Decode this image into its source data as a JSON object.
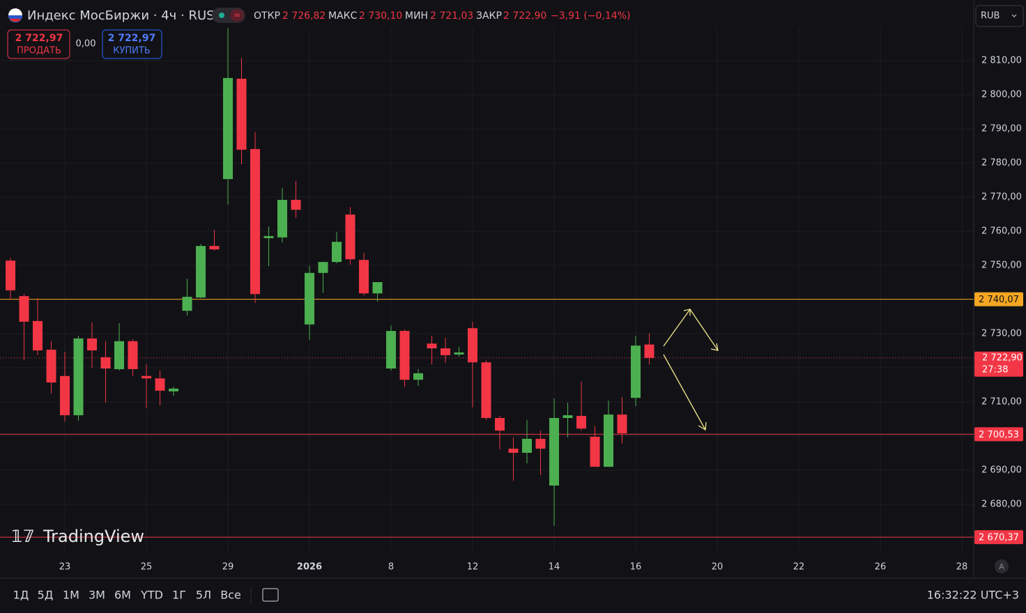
{
  "header": {
    "title": "Индекс МосБиржи · 4ч · RUS",
    "open_label": "ОТКР",
    "open_value": "2 726,82",
    "high_label": "МАКС",
    "high_value": "2 730,10",
    "low_label": "МИН",
    "low_value": "2 721,03",
    "close_label": "ЗАКР",
    "close_value": "2 722,90",
    "change": "−3,91 (−0,14%)",
    "currency": "RUB"
  },
  "trade": {
    "sell_price": "2 722,97",
    "sell_label": "ПРОДАТЬ",
    "spread": "0,00",
    "buy_price": "2 722,97",
    "buy_label": "КУПИТЬ"
  },
  "logo": "TradingView",
  "toolbar": {
    "ranges": [
      "1Д",
      "5Д",
      "1М",
      "3М",
      "6М",
      "YTD",
      "1Г",
      "5Л",
      "Все"
    ],
    "clock": "16:32:22 UTC+3",
    "auto": "A"
  },
  "chart_data": {
    "type": "candlestick",
    "up_color": "#4caf50",
    "down_color": "#f23645",
    "grid": true,
    "x": [
      0,
      1,
      2,
      3,
      4,
      5,
      6,
      7,
      8,
      9,
      10,
      11,
      12,
      13,
      14,
      15,
      16,
      17,
      18,
      19,
      20,
      21,
      22,
      23,
      24,
      25,
      26,
      27,
      28,
      29,
      30,
      31,
      32,
      33,
      34,
      35,
      36,
      37,
      38,
      39,
      40,
      41,
      42,
      43,
      44,
      45,
      46,
      47
    ],
    "open": [
      2751.4,
      2741.0,
      2733.7,
      2725.3,
      2717.6,
      2706.1,
      2728.6,
      2723.1,
      2719.6,
      2727.8,
      2717.6,
      2716.9,
      2713.1,
      2736.7,
      2740.6,
      2755.7,
      2775.3,
      2804.7,
      2784.1,
      2758.0,
      2758.2,
      2769.2,
      2732.7,
      2747.8,
      2751.0,
      2764.9,
      2751.6,
      2741.8,
      2719.8,
      2730.8,
      2716.5,
      2727.1,
      2725.7,
      2723.9,
      2731.6,
      2721.6,
      2705.3,
      2696.3,
      2695.1,
      2699.2,
      2685.5,
      2705.3,
      2705.9,
      2699.8,
      2691.0,
      2706.3,
      2711.2,
      2726.82
    ],
    "high": [
      2752.2,
      2741.6,
      2740.4,
      2727.8,
      2724.7,
      2729.4,
      2733.3,
      2727.8,
      2733.1,
      2728.4,
      2721.0,
      2719.2,
      2714.5,
      2746.1,
      2756.3,
      2760.4,
      2819.6,
      2810.8,
      2789.0,
      2761.4,
      2772.7,
      2774.7,
      2749.8,
      2751.0,
      2759.8,
      2767.1,
      2753.7,
      2745.1,
      2732.4,
      2731.2,
      2719.6,
      2729.4,
      2728.8,
      2726.1,
      2733.5,
      2722.2,
      2705.9,
      2699.6,
      2704.7,
      2701.6,
      2711.0,
      2709.8,
      2715.9,
      2702.9,
      2710.4,
      2711.4,
      2729.4,
      2730.1
    ],
    "low": [
      2740.0,
      2722.2,
      2723.7,
      2712.4,
      2704.3,
      2704.5,
      2720.0,
      2709.8,
      2719.2,
      2717.6,
      2708.2,
      2709.0,
      2711.8,
      2735.3,
      2740.4,
      2754.3,
      2767.8,
      2779.6,
      2739.0,
      2749.8,
      2756.7,
      2763.9,
      2728.2,
      2742.0,
      2750.6,
      2750.2,
      2741.2,
      2739.4,
      2719.2,
      2714.5,
      2714.7,
      2721.0,
      2721.4,
      2723.3,
      2708.4,
      2704.7,
      2696.1,
      2686.9,
      2692.0,
      2688.6,
      2673.7,
      2699.6,
      2701.6,
      2691.0,
      2691.0,
      2697.8,
      2708.8,
      2721.03
    ],
    "close": [
      2742.7,
      2733.5,
      2725.1,
      2715.7,
      2706.1,
      2728.6,
      2725.1,
      2719.8,
      2727.8,
      2719.6,
      2716.9,
      2713.3,
      2713.9,
      2740.8,
      2755.7,
      2754.7,
      2804.9,
      2783.9,
      2741.6,
      2758.6,
      2769.2,
      2766.3,
      2747.8,
      2751.0,
      2756.9,
      2751.8,
      2741.8,
      2745.1,
      2730.8,
      2716.5,
      2718.4,
      2725.7,
      2723.7,
      2724.5,
      2721.6,
      2705.3,
      2701.6,
      2695.1,
      2699.2,
      2696.3,
      2705.3,
      2706.1,
      2702.2,
      2691.0,
      2706.3,
      2700.8,
      2726.5,
      2722.9
    ],
    "xlim": [
      -0.77,
      70.87
    ],
    "xticks": [
      {
        "value": 4,
        "label": "23"
      },
      {
        "value": 10,
        "label": "25"
      },
      {
        "value": 16,
        "label": "29"
      },
      {
        "value": 22,
        "label": "2026"
      },
      {
        "value": 28,
        "label": "8"
      },
      {
        "value": 34,
        "label": "12"
      },
      {
        "value": 40,
        "label": "14"
      },
      {
        "value": 46,
        "label": "16"
      },
      {
        "value": 52,
        "label": "20"
      },
      {
        "value": 58,
        "label": "22"
      },
      {
        "value": 64,
        "label": "26"
      },
      {
        "value": 70,
        "label": "28"
      }
    ],
    "ylim": [
      2665.51,
      2827.76
    ],
    "yticks": [
      {
        "value": 2680,
        "label": "2 680,00"
      },
      {
        "value": 2690,
        "label": "2 690,00"
      },
      {
        "value": 2700,
        "label": "2 700,00"
      },
      {
        "value": 2710,
        "label": "2 710,00"
      },
      {
        "value": 2720,
        "label": "2 720,00"
      },
      {
        "value": 2730,
        "label": "2 730,00"
      },
      {
        "value": 2740,
        "label": "2 740,00"
      },
      {
        "value": 2750,
        "label": "2 750,00"
      },
      {
        "value": 2760,
        "label": "2 760,00"
      },
      {
        "value": 2770,
        "label": "2 770,00"
      },
      {
        "value": 2780,
        "label": "2 780,00"
      },
      {
        "value": 2790,
        "label": "2 790,00"
      },
      {
        "value": 2800,
        "label": "2 800,00"
      },
      {
        "value": 2810,
        "label": "2 810,00"
      }
    ],
    "hlines": [
      {
        "value": 2740.07,
        "label": "2 740,07",
        "color": "#f5a623"
      },
      {
        "value": 2700.53,
        "label": "2 700,53",
        "color": "#f23645"
      },
      {
        "value": 2670.37,
        "label": "2 670,37",
        "color": "#f23645"
      }
    ],
    "last_price": {
      "value": 2722.9,
      "label": "2 722,90",
      "countdown": "27:38",
      "color": "#f23645"
    }
  }
}
